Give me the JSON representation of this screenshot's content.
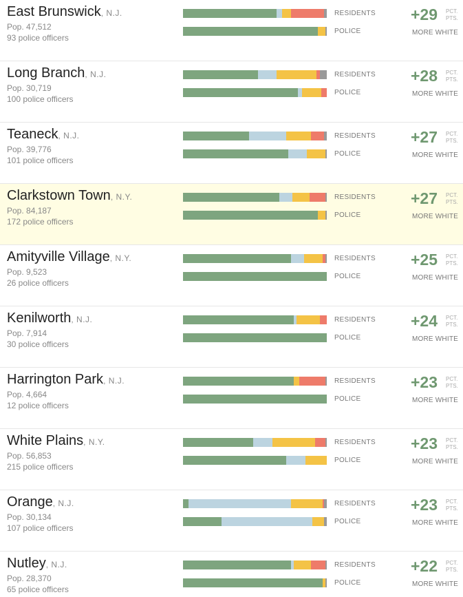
{
  "labels": {
    "residents": "RESIDENTS",
    "police": "POLICE",
    "unit_line1": "PCT.",
    "unit_line2": "PTS.",
    "more_white": "MORE WHITE"
  },
  "colors": {
    "white": "#7ea57f",
    "black": "#bcd4e0",
    "hispanic": "#f4c346",
    "asian": "#ee7b6a",
    "other": "#999999",
    "highlight_bg": "#fffde3",
    "diff_text": "#6f9870"
  },
  "chart_data": {
    "type": "stacked-bar",
    "segment_order": [
      "white",
      "black",
      "hispanic",
      "asian",
      "other"
    ],
    "rows": [
      {
        "name": "East Brunswick",
        "state": ", N.J.",
        "pop": "Pop. 47,512",
        "officers": "93 police officers",
        "diff": "+29",
        "highlight": false,
        "residents": [
          65,
          4,
          6,
          23,
          2
        ],
        "police": [
          94,
          0,
          5,
          0,
          1
        ]
      },
      {
        "name": "Long Branch",
        "state": ", N.J.",
        "pop": "Pop. 30,719",
        "officers": "100 police officers",
        "diff": "+28",
        "highlight": false,
        "residents": [
          52,
          13,
          28,
          2,
          5
        ],
        "police": [
          80,
          3,
          13,
          4,
          0
        ]
      },
      {
        "name": "Teaneck",
        "state": ", N.J.",
        "pop": "Pop. 39,776",
        "officers": "101 police officers",
        "diff": "+27",
        "highlight": false,
        "residents": [
          46,
          26,
          17,
          9,
          2
        ],
        "police": [
          73,
          13,
          13,
          0,
          1
        ]
      },
      {
        "name": "Clarkstown Town",
        "state": ", N.Y.",
        "pop": "Pop. 84,187",
        "officers": "172 police officers",
        "diff": "+27",
        "highlight": true,
        "residents": [
          67,
          9,
          12,
          11,
          1
        ],
        "police": [
          94,
          0,
          5,
          0,
          1
        ]
      },
      {
        "name": "Amityville Village",
        "state": ", N.Y.",
        "pop": "Pop. 9,523",
        "officers": "26 police officers",
        "diff": "+25",
        "highlight": false,
        "residents": [
          75,
          9,
          13,
          2,
          1
        ],
        "police": [
          100,
          0,
          0,
          0,
          0
        ]
      },
      {
        "name": "Kenilworth",
        "state": ", N.J.",
        "pop": "Pop. 7,914",
        "officers": "30 police officers",
        "diff": "+24",
        "highlight": false,
        "residents": [
          77,
          2,
          16,
          5,
          0
        ],
        "police": [
          100,
          0,
          0,
          0,
          0
        ]
      },
      {
        "name": "Harrington Park",
        "state": ", N.J.",
        "pop": "Pop. 4,664",
        "officers": "12 police officers",
        "diff": "+23",
        "highlight": false,
        "residents": [
          77,
          0,
          4,
          18,
          1
        ],
        "police": [
          100,
          0,
          0,
          0,
          0
        ]
      },
      {
        "name": "White Plains",
        "state": ", N.Y.",
        "pop": "Pop. 56,853",
        "officers": "215 police officers",
        "diff": "+23",
        "highlight": false,
        "residents": [
          49,
          13,
          30,
          7,
          1
        ],
        "police": [
          72,
          13,
          15,
          0,
          0
        ]
      },
      {
        "name": "Orange",
        "state": ", N.J.",
        "pop": "Pop. 30,134",
        "officers": "107 police officers",
        "diff": "+23",
        "highlight": false,
        "residents": [
          4,
          71,
          22,
          1,
          2
        ],
        "police": [
          27,
          63,
          8,
          0,
          2
        ]
      },
      {
        "name": "Nutley",
        "state": ", N.J.",
        "pop": "Pop. 28,370",
        "officers": "65 police officers",
        "diff": "+22",
        "highlight": false,
        "residents": [
          75,
          2,
          12,
          10,
          1
        ],
        "police": [
          97,
          0,
          2,
          0,
          1
        ]
      }
    ]
  }
}
